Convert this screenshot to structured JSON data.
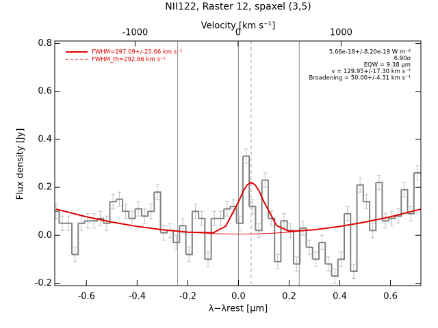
{
  "chart_data": {
    "type": "step",
    "title": "NII122, Raster 12, spaxel (3,5)",
    "xlabel": "λ−λrest [μm]",
    "ylabel": "Flux density [Jy]",
    "x2label": "Velocity [km s⁻¹]",
    "xlim": [
      -0.725,
      0.72
    ],
    "ylim": [
      -0.21,
      0.81
    ],
    "x2lim": [
      -1780,
      1775
    ],
    "xticks": [
      -0.6,
      -0.4,
      -0.2,
      {
        "value": 0,
        "label": "0.0"
      },
      0.2,
      0.4,
      0.6
    ],
    "yticks": [
      -0.2,
      {
        "value": 0,
        "label": "0.0"
      },
      0.2,
      0.4,
      0.6,
      0.8
    ],
    "x2ticks": [
      -1000,
      0,
      1000
    ],
    "x": [
      -0.72,
      -0.695,
      -0.67,
      -0.645,
      -0.62,
      -0.595,
      -0.57,
      -0.545,
      -0.52,
      -0.495,
      -0.47,
      -0.445,
      -0.42,
      -0.395,
      -0.37,
      -0.345,
      -0.32,
      -0.295,
      -0.27,
      -0.245,
      -0.22,
      -0.195,
      -0.17,
      -0.145,
      -0.12,
      -0.095,
      -0.07,
      -0.045,
      -0.02,
      0.005,
      0.03,
      0.055,
      0.08,
      0.105,
      0.13,
      0.155,
      0.18,
      0.205,
      0.23,
      0.255,
      0.28,
      0.305,
      0.33,
      0.355,
      0.38,
      0.405,
      0.43,
      0.455,
      0.48,
      0.505,
      0.53,
      0.555,
      0.58,
      0.605,
      0.63,
      0.655,
      0.68,
      0.705
    ],
    "values": [
      0.1,
      0.05,
      0.05,
      -0.08,
      0.05,
      0.06,
      0.06,
      0.07,
      0.05,
      0.14,
      0.15,
      0.1,
      0.07,
      0.11,
      0.08,
      0.1,
      0.18,
      0.01,
      0.02,
      -0.03,
      0.04,
      -0.08,
      0.1,
      0.07,
      -0.1,
      0.07,
      0.07,
      0.11,
      0.12,
      0.05,
      0.33,
      0.12,
      0.02,
      0.23,
      0.07,
      -0.11,
      0.06,
      0.02,
      -0.12,
      0.03,
      -0.05,
      -0.1,
      -0.03,
      -0.12,
      -0.17,
      -0.1,
      0.09,
      -0.15,
      0.21,
      0.14,
      0.02,
      0.22,
      0.06,
      0.07,
      0.08,
      0.19,
      0.09,
      0.26
    ],
    "errors": [
      0.03,
      0.03,
      0.03,
      0.03,
      0.03,
      0.03,
      0.03,
      0.03,
      0.03,
      0.03,
      0.03,
      0.03,
      0.03,
      0.03,
      0.03,
      0.03,
      0.03,
      0.03,
      0.03,
      0.03,
      0.03,
      0.03,
      0.03,
      0.03,
      0.03,
      0.03,
      0.03,
      0.03,
      0.03,
      0.03,
      0.03,
      0.03,
      0.03,
      0.03,
      0.03,
      0.03,
      0.03,
      0.03,
      0.03,
      0.03,
      0.03,
      0.03,
      0.03,
      0.03,
      0.03,
      0.03,
      0.03,
      0.03,
      0.03,
      0.03,
      0.03,
      0.03,
      0.03,
      0.03,
      0.03,
      0.03,
      0.03,
      0.03
    ],
    "color": "#808080",
    "error_color": "#c0c0c0",
    "fit": {
      "name": "FWHM=297.09+/-25.66 km s⁻¹",
      "color": "#e00000",
      "x": [
        -0.72,
        -0.6,
        -0.5,
        -0.4,
        -0.3,
        -0.2,
        -0.1,
        -0.05,
        0,
        0.02,
        0.035,
        0.05,
        0.065,
        0.08,
        0.1,
        0.15,
        0.2,
        0.3,
        0.4,
        0.5,
        0.6,
        0.72
      ],
      "values": [
        0.109,
        0.077,
        0.055,
        0.037,
        0.023,
        0.013,
        0.01,
        0.038,
        0.139,
        0.186,
        0.211,
        0.22,
        0.211,
        0.187,
        0.141,
        0.041,
        0.016,
        0.023,
        0.037,
        0.055,
        0.077,
        0.109
      ],
      "baseline": [
        0.109,
        0.077,
        0.055,
        0.037,
        0.023,
        0.013,
        0.007,
        0.0055,
        0.005,
        0.005,
        0.005,
        0.0055,
        0.006,
        0.006,
        0.007,
        0.0095,
        0.013,
        0.023,
        0.037,
        0.055,
        0.077,
        0.109
      ]
    },
    "fit_th": {
      "name": "FWHM_th=292.86 km s⁻¹",
      "color": "#e00000"
    },
    "vlines": [
      -0.24,
      0,
      0.24
    ],
    "vline_dashed": 0.05,
    "annotations": [
      "5.66e-18+/-8.20e-19 W m⁻²",
      "6.90σ",
      "EQW = 9.38 μm",
      "v = 129.95+/-17.30 km s⁻¹",
      "Broadening = 50.00+/-4.31 km s⁻¹"
    ]
  }
}
